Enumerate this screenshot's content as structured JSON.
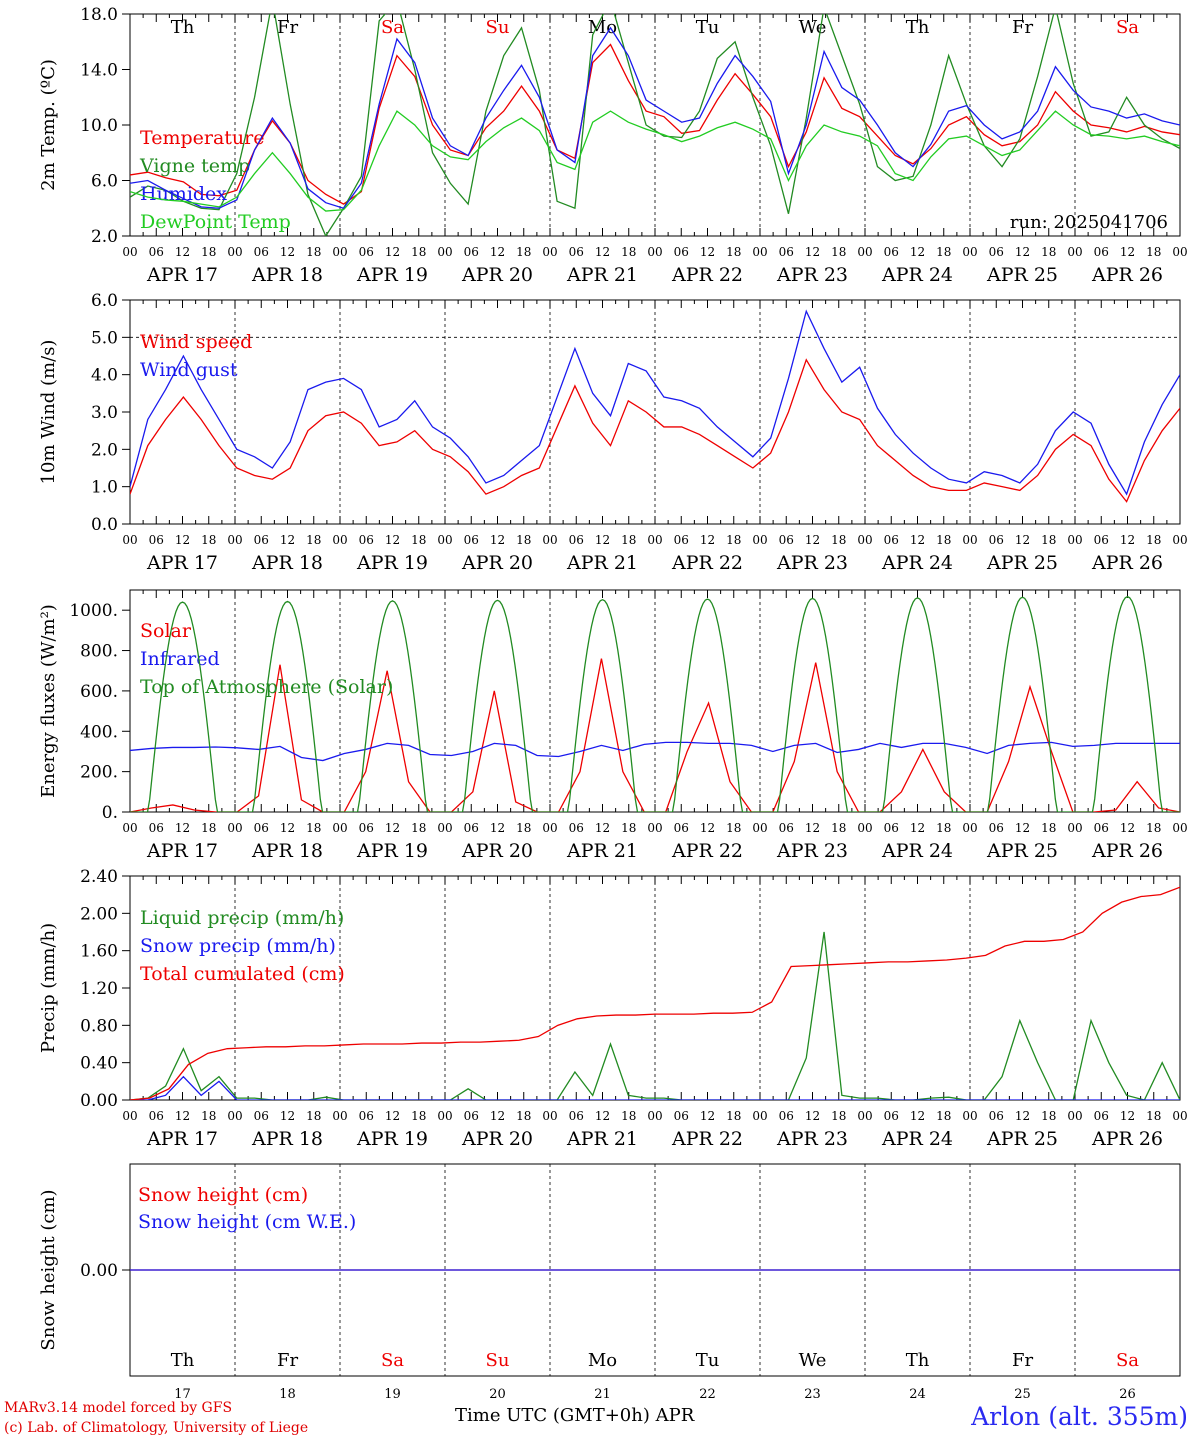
{
  "colors": {
    "red": "#ee0000",
    "darkgreen": "#228b22",
    "green": "#22cc22",
    "blue": "#1a1aee",
    "black": "#000000",
    "sunday": "#ee0000"
  },
  "footer": {
    "credit_line1": "MARv3.14 model forced by GFS",
    "credit_line2": "(c) Lab. of Climatology, University of Liege",
    "x_title": "Time UTC (GMT+0h) APR",
    "station": "Arlon (alt. 355m)"
  },
  "chart_data": [
    {
      "type": "line",
      "ylabel": "2m Temp. (ºC)",
      "ylim": [
        2,
        18
      ],
      "yticks": [
        "2.0",
        "6.0",
        "10.0",
        "14.0",
        "18.0"
      ],
      "annotation": "run: 2025041706",
      "day_labels": [
        "Th",
        "Fr",
        "Sa",
        "Su",
        "Mo",
        "Tu",
        "We",
        "Th",
        "Fr",
        "Sa"
      ],
      "weekend_days": [
        "Sa",
        "Su"
      ],
      "x_hour_ticks": [
        "00",
        "06",
        "12",
        "18"
      ],
      "date_labels": [
        "APR 17",
        "APR 18",
        "APR 19",
        "APR 20",
        "APR 21",
        "APR 22",
        "APR 23",
        "APR 24",
        "APR 25",
        "APR 26"
      ],
      "x_hours_step": 6,
      "series": [
        {
          "name": "Temperature",
          "color": "red",
          "values": [
            6.4,
            6.6,
            6.2,
            5.9,
            5.0,
            4.9,
            5.3,
            8.2,
            10.3,
            8.7,
            6.0,
            5.0,
            4.3,
            5.2,
            11.2,
            15.0,
            13.5,
            10.0,
            8.2,
            7.8,
            9.8,
            11.0,
            12.8,
            11.0,
            8.2,
            7.6,
            14.5,
            15.8,
            13.2,
            11.0,
            10.6,
            9.4,
            9.6,
            11.8,
            13.7,
            12.2,
            10.6,
            7.0,
            9.5,
            13.4,
            11.2,
            10.6,
            9.2,
            7.8,
            7.2,
            8.3,
            10.0,
            10.6,
            9.3,
            8.5,
            8.8,
            10.0,
            12.4,
            11.0,
            10.0,
            9.8,
            9.5,
            9.9,
            9.5,
            9.3
          ]
        },
        {
          "name": "Vigne temp",
          "color": "darkgreen",
          "values": [
            4.8,
            5.6,
            5.3,
            4.5,
            4.0,
            3.9,
            6.5,
            12.0,
            19.0,
            11.5,
            5.0,
            2.0,
            4.0,
            6.3,
            17.5,
            19.0,
            14.0,
            8.0,
            5.8,
            4.3,
            11.0,
            15.0,
            17.0,
            12.5,
            4.5,
            4.0,
            16.5,
            19.0,
            14.5,
            10.0,
            9.2,
            9.1,
            11.0,
            14.8,
            16.0,
            12.0,
            8.5,
            3.6,
            10.5,
            18.5,
            15.0,
            11.5,
            7.0,
            6.0,
            6.3,
            10.0,
            15.0,
            11.5,
            8.5,
            7.0,
            9.0,
            13.5,
            18.5,
            13.0,
            9.2,
            9.5,
            12.0,
            10.0,
            9.0,
            8.3
          ]
        },
        {
          "name": "Humidex",
          "color": "blue",
          "values": [
            5.8,
            6.0,
            5.3,
            4.7,
            4.1,
            4.0,
            4.6,
            8.2,
            10.5,
            8.7,
            5.4,
            4.4,
            4.0,
            5.8,
            11.5,
            16.2,
            14.5,
            10.5,
            8.5,
            7.8,
            10.5,
            12.5,
            14.3,
            12.0,
            8.2,
            7.3,
            15.0,
            17.0,
            15.0,
            11.8,
            11.0,
            10.2,
            10.5,
            13.0,
            15.0,
            13.5,
            11.7,
            6.5,
            10.0,
            15.3,
            12.7,
            11.8,
            10.0,
            8.0,
            7.0,
            8.6,
            11.0,
            11.4,
            10.0,
            9.0,
            9.5,
            11.0,
            14.2,
            12.5,
            11.3,
            11.0,
            10.5,
            10.8,
            10.3,
            10.0
          ]
        },
        {
          "name": "DewPoint Temp",
          "color": "green",
          "values": [
            5.2,
            4.8,
            4.6,
            4.5,
            4.3,
            4.1,
            4.8,
            6.5,
            8.0,
            6.5,
            4.8,
            3.8,
            3.9,
            5.3,
            8.5,
            11.0,
            10.0,
            8.5,
            7.7,
            7.5,
            8.8,
            9.8,
            10.5,
            9.6,
            7.3,
            6.8,
            10.2,
            11.0,
            10.2,
            9.7,
            9.3,
            8.8,
            9.2,
            9.8,
            10.2,
            9.7,
            9.0,
            6.0,
            8.5,
            10.0,
            9.5,
            9.2,
            8.5,
            6.5,
            6.0,
            7.7,
            9.0,
            9.2,
            8.5,
            7.8,
            8.2,
            9.6,
            11.0,
            10.0,
            9.3,
            9.2,
            9.0,
            9.2,
            8.8,
            8.5
          ]
        }
      ]
    },
    {
      "type": "line",
      "ylabel": "10m Wind (m/s)",
      "ylim": [
        0,
        6
      ],
      "yticks": [
        "0.0",
        "1.0",
        "2.0",
        "3.0",
        "4.0",
        "5.0",
        "6.0"
      ],
      "reference_line": 5.0,
      "x_hour_ticks": [
        "00",
        "06",
        "12",
        "18"
      ],
      "date_labels": [
        "APR 17",
        "APR 18",
        "APR 19",
        "APR 20",
        "APR 21",
        "APR 22",
        "APR 23",
        "APR 24",
        "APR 25",
        "APR 26"
      ],
      "x_hours_step": 6,
      "series": [
        {
          "name": "Wind speed",
          "color": "red",
          "values": [
            0.8,
            2.1,
            2.8,
            3.4,
            2.8,
            2.1,
            1.5,
            1.3,
            1.2,
            1.5,
            2.5,
            2.9,
            3.0,
            2.7,
            2.1,
            2.2,
            2.5,
            2.0,
            1.8,
            1.4,
            0.8,
            1.0,
            1.3,
            1.5,
            2.6,
            3.7,
            2.7,
            2.1,
            3.3,
            3.0,
            2.6,
            2.6,
            2.4,
            2.1,
            1.8,
            1.5,
            1.9,
            3.0,
            4.4,
            3.6,
            3.0,
            2.8,
            2.1,
            1.7,
            1.3,
            1.0,
            0.9,
            0.9,
            1.1,
            1.0,
            0.9,
            1.3,
            2.0,
            2.4,
            2.1,
            1.2,
            0.6,
            1.7,
            2.5,
            3.1
          ]
        },
        {
          "name": "Wind gust",
          "color": "blue",
          "values": [
            1.0,
            2.8,
            3.6,
            4.5,
            3.6,
            2.8,
            2.0,
            1.8,
            1.5,
            2.2,
            3.6,
            3.8,
            3.9,
            3.6,
            2.6,
            2.8,
            3.3,
            2.6,
            2.3,
            1.8,
            1.1,
            1.3,
            1.7,
            2.1,
            3.4,
            4.7,
            3.5,
            2.9,
            4.3,
            4.1,
            3.4,
            3.3,
            3.1,
            2.6,
            2.2,
            1.8,
            2.3,
            3.9,
            5.7,
            4.7,
            3.8,
            4.2,
            3.1,
            2.4,
            1.9,
            1.5,
            1.2,
            1.1,
            1.4,
            1.3,
            1.1,
            1.6,
            2.5,
            3.0,
            2.7,
            1.6,
            0.8,
            2.2,
            3.2,
            4.0
          ]
        }
      ]
    },
    {
      "type": "line",
      "ylabel": "Energy fluxes (W/m²)",
      "ylim": [
        0,
        1100
      ],
      "yticks": [
        "0.",
        "200.",
        "400.",
        "600.",
        "800.",
        "1000."
      ],
      "x_hour_ticks": [
        "00",
        "06",
        "12",
        "18"
      ],
      "date_labels": [
        "APR 17",
        "APR 18",
        "APR 19",
        "APR 20",
        "APR 21",
        "APR 22",
        "APR 23",
        "APR 24",
        "APR 25",
        "APR 26"
      ],
      "x_hours_step": 6,
      "series": [
        {
          "name": "Solar",
          "color": "red",
          "values": [
            0,
            20,
            35,
            10,
            0,
            0,
            80,
            730,
            60,
            0,
            0,
            200,
            700,
            150,
            0,
            0,
            100,
            600,
            50,
            0,
            0,
            200,
            760,
            200,
            0,
            0,
            300,
            540,
            150,
            0,
            0,
            250,
            740,
            200,
            0,
            0,
            100,
            310,
            100,
            0,
            0,
            250,
            620,
            300,
            0,
            0,
            10,
            150,
            20,
            0
          ]
        },
        {
          "name": "Infrared",
          "color": "blue",
          "values": [
            305,
            315,
            320,
            320,
            322,
            318,
            310,
            325,
            270,
            255,
            290,
            310,
            340,
            330,
            285,
            280,
            300,
            340,
            330,
            280,
            275,
            300,
            330,
            305,
            335,
            345,
            345,
            340,
            340,
            330,
            300,
            330,
            340,
            295,
            310,
            340,
            320,
            340,
            340,
            320,
            290,
            330,
            340,
            345,
            325,
            330,
            340,
            340,
            340,
            340
          ]
        },
        {
          "name": "Top of Atmosphere (Solar)",
          "color": "darkgreen",
          "peak": [
            1040,
            1043,
            1046,
            1049,
            1052,
            1055,
            1058,
            1061,
            1064,
            1067
          ]
        }
      ]
    },
    {
      "type": "line",
      "ylabel": "Precip (mm/h)",
      "ylim": [
        0,
        2.4
      ],
      "yticks": [
        "0.00",
        "0.40",
        "0.80",
        "1.20",
        "1.60",
        "2.00",
        "2.40"
      ],
      "x_hour_ticks": [
        "00",
        "06",
        "12",
        "18"
      ],
      "date_labels": [
        "APR 17",
        "APR 18",
        "APR 19",
        "APR 20",
        "APR 21",
        "APR 22",
        "APR 23",
        "APR 24",
        "APR 25",
        "APR 26"
      ],
      "x_hours_step": 6,
      "series": [
        {
          "name": "Liquid precip (mm/h)",
          "color": "darkgreen",
          "values": [
            0,
            0.02,
            0.15,
            0.55,
            0.1,
            0.25,
            0.02,
            0.02,
            0,
            0,
            0,
            0.03,
            0,
            0,
            0,
            0,
            0,
            0,
            0,
            0.12,
            0,
            0,
            0,
            0,
            0,
            0.3,
            0.05,
            0.6,
            0.05,
            0.02,
            0.02,
            0,
            0,
            0,
            0,
            0,
            0,
            0,
            0.45,
            1.8,
            0.05,
            0.02,
            0.02,
            0,
            0,
            0.02,
            0.03,
            0,
            0,
            0.25,
            0.85,
            0.4,
            0,
            0,
            0.85,
            0.4,
            0.05,
            0,
            0.4,
            0
          ]
        },
        {
          "name": "Snow precip (mm/h)",
          "color": "blue",
          "values": [
            0,
            0,
            0.05,
            0.25,
            0.05,
            0.2,
            0,
            0,
            0,
            0,
            0,
            0,
            0,
            0,
            0,
            0,
            0,
            0,
            0,
            0,
            0,
            0,
            0,
            0,
            0,
            0,
            0,
            0,
            0,
            0,
            0,
            0,
            0,
            0,
            0,
            0,
            0,
            0,
            0,
            0,
            0,
            0,
            0,
            0,
            0,
            0,
            0,
            0,
            0,
            0,
            0,
            0,
            0,
            0,
            0,
            0,
            0,
            0,
            0,
            0
          ]
        },
        {
          "name": "Total cumulated (cm)",
          "color": "red",
          "values": [
            0,
            0.02,
            0.12,
            0.38,
            0.5,
            0.55,
            0.56,
            0.57,
            0.57,
            0.58,
            0.58,
            0.59,
            0.6,
            0.6,
            0.6,
            0.61,
            0.61,
            0.62,
            0.62,
            0.63,
            0.64,
            0.68,
            0.8,
            0.87,
            0.9,
            0.91,
            0.91,
            0.92,
            0.92,
            0.92,
            0.93,
            0.93,
            0.94,
            1.05,
            1.43,
            1.44,
            1.45,
            1.46,
            1.47,
            1.48,
            1.48,
            1.49,
            1.5,
            1.52,
            1.55,
            1.65,
            1.7,
            1.7,
            1.72,
            1.8,
            2.0,
            2.12,
            2.18,
            2.2,
            2.28
          ]
        }
      ]
    },
    {
      "type": "line",
      "ylabel": "Snow height (cm)",
      "yticks": [
        "0.00"
      ],
      "day_labels": [
        "Th",
        "Fr",
        "Sa",
        "Su",
        "Mo",
        "Tu",
        "We",
        "Th",
        "Fr",
        "Sa"
      ],
      "weekend_days": [
        "Sa",
        "Su"
      ],
      "day_numbers": [
        "17",
        "18",
        "19",
        "20",
        "21",
        "22",
        "23",
        "24",
        "25",
        "26"
      ],
      "series": [
        {
          "name": "Snow height (cm)",
          "color": "red",
          "values": [
            0,
            0
          ]
        },
        {
          "name": "Snow height (cm W.E.)",
          "color": "blue",
          "values": [
            0,
            0
          ]
        }
      ]
    }
  ]
}
